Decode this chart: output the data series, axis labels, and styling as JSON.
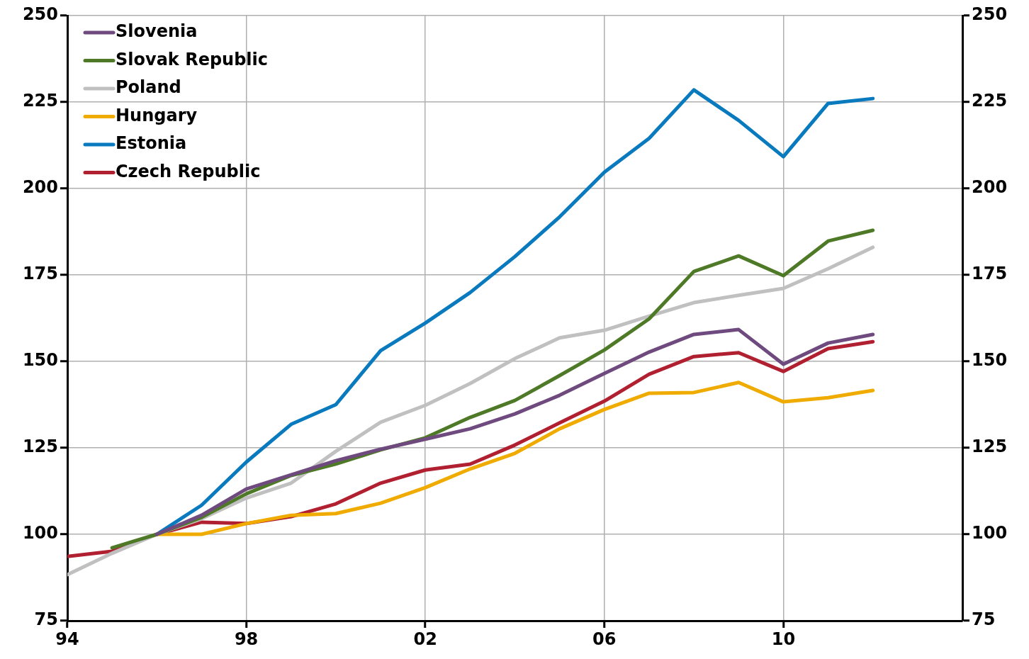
{
  "chart_data": {
    "type": "line",
    "xlim": [
      1994,
      2014
    ],
    "xticks": [
      {
        "value": 1994,
        "label": "94"
      },
      {
        "value": 1998,
        "label": "98"
      },
      {
        "value": 2002,
        "label": "02"
      },
      {
        "value": 2006,
        "label": "06"
      },
      {
        "value": 2010,
        "label": "10"
      }
    ],
    "ylim": [
      75,
      250
    ],
    "yticks": [
      75,
      100,
      125,
      150,
      175,
      200,
      225,
      250
    ],
    "y2lim": [
      75,
      250
    ],
    "y2ticks": [
      75,
      100,
      125,
      150,
      175,
      200,
      225,
      250
    ],
    "grid": true,
    "legend": "top left",
    "marker": "none",
    "line_style": "solid",
    "series": [
      {
        "name": "Slovenia",
        "color": "#6f4a7e",
        "x": [
          1996,
          1997,
          1998,
          1999,
          2000,
          2001,
          2002,
          2003,
          2004,
          2005,
          2006,
          2007,
          2008,
          2009,
          2010,
          2011,
          2012
        ],
        "values": [
          100,
          105.5,
          113.1,
          117.2,
          121.3,
          124.6,
          127.5,
          130.5,
          134.8,
          140.2,
          146.5,
          152.7,
          157.8,
          159.2,
          149.2,
          155.3,
          157.8
        ]
      },
      {
        "name": "Slovak Republic",
        "color": "#4e7a27",
        "x": [
          1995,
          1996,
          1997,
          1998,
          1999,
          2000,
          2001,
          2002,
          2003,
          2004,
          2005,
          2006,
          2007,
          2008,
          2009,
          2010,
          2011,
          2012
        ],
        "values": [
          96.1,
          100,
          104.9,
          111.7,
          117.0,
          120.3,
          124.4,
          127.9,
          133.8,
          138.7,
          145.9,
          153.3,
          162.3,
          176.0,
          180.5,
          174.8,
          184.8,
          187.9
        ]
      },
      {
        "name": "Poland",
        "color": "#c0c0c0",
        "x": [
          1994,
          1995,
          1996,
          1997,
          1998,
          1999,
          2000,
          2001,
          2002,
          2003,
          2004,
          2005,
          2006,
          2007,
          2008,
          2009,
          2010,
          2011,
          2012
        ],
        "values": [
          88.3,
          94.5,
          100,
          104.5,
          110.5,
          114.8,
          124.0,
          132.4,
          137.3,
          143.6,
          150.8,
          156.8,
          159.0,
          163.1,
          167.0,
          169.1,
          171.1,
          176.8,
          183.0
        ]
      },
      {
        "name": "Hungary",
        "color": "#f0ab00",
        "x": [
          1996,
          1997,
          1998,
          1999,
          2000,
          2001,
          2002,
          2003,
          2004,
          2005,
          2006,
          2007,
          2008,
          2009,
          2010,
          2011,
          2012
        ],
        "values": [
          100,
          100,
          103.1,
          105.5,
          106.0,
          109.0,
          113.5,
          118.9,
          123.4,
          130.5,
          136.1,
          140.8,
          141.0,
          143.9,
          138.3,
          139.5,
          141.6
        ]
      },
      {
        "name": "Estonia",
        "color": "#0a7abf",
        "x": [
          1996,
          1997,
          1998,
          1999,
          2000,
          2001,
          2002,
          2003,
          2004,
          2005,
          2006,
          2007,
          2008,
          2009,
          2010,
          2011,
          2012
        ],
        "values": [
          100,
          108.4,
          120.9,
          131.8,
          137.5,
          153.1,
          161.1,
          169.9,
          180.3,
          191.8,
          204.7,
          214.5,
          228.5,
          219.7,
          209.2,
          224.6,
          226.0
        ]
      },
      {
        "name": "Czech Republic",
        "color": "#b02030",
        "x": [
          1994,
          1995,
          1996,
          1997,
          1998,
          1999,
          2000,
          2001,
          2002,
          2003,
          2004,
          2005,
          2006,
          2007,
          2008,
          2009,
          2010,
          2011,
          2012
        ],
        "values": [
          93.6,
          95.1,
          100,
          103.5,
          103.1,
          105.1,
          108.8,
          114.8,
          118.6,
          120.3,
          125.8,
          132.2,
          138.5,
          146.3,
          151.4,
          152.5,
          147.1,
          153.7,
          155.7
        ]
      }
    ]
  }
}
